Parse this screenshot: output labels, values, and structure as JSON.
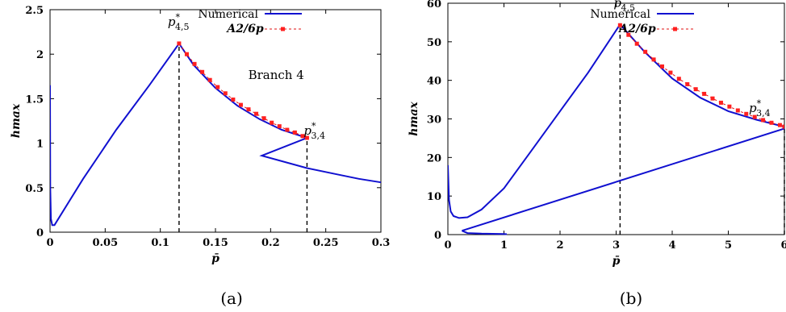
{
  "chart_data": [
    {
      "type": "line",
      "panel": "(a)",
      "xlabel": "p̄",
      "ylabel": "hmax",
      "xlim": [
        0,
        0.3
      ],
      "ylim": [
        0,
        2.5
      ],
      "xticks": [
        "0",
        "0.05",
        "0.1",
        "0.15",
        "0.2",
        "0.25",
        "0.3"
      ],
      "xtick_values": [
        0,
        0.05,
        0.1,
        0.15,
        0.2,
        0.25,
        0.3
      ],
      "yticks": [
        "0",
        "0.5",
        "1",
        "1.5",
        "2",
        "2.5"
      ],
      "ytick_values": [
        0,
        0.5,
        1,
        1.5,
        2,
        2.5
      ],
      "legend": [
        "Numerical",
        "A2/6p"
      ],
      "legend_position": "top-right",
      "annotations": [
        "p*4,5",
        "p*3,4",
        "Branch 4"
      ],
      "series": [
        {
          "name": "Numerical",
          "style": "solid-blue",
          "x": [
            0.0,
            0.0002,
            0.0008,
            0.002,
            0.004,
            0.006,
            0.03,
            0.06,
            0.09,
            0.117,
            0.13,
            0.15,
            0.17,
            0.19,
            0.21,
            0.233,
            0.192,
            0.233,
            0.26,
            0.28,
            0.3
          ],
          "y": [
            1.65,
            0.5,
            0.15,
            0.08,
            0.08,
            0.12,
            0.6,
            1.15,
            1.65,
            2.12,
            1.88,
            1.62,
            1.42,
            1.27,
            1.15,
            1.06,
            0.86,
            0.72,
            0.65,
            0.6,
            0.56
          ]
        },
        {
          "name": "A2/6p",
          "style": "red-dashed-squares",
          "x": [
            0.117,
            0.124,
            0.131,
            0.138,
            0.145,
            0.152,
            0.159,
            0.166,
            0.173,
            0.18,
            0.187,
            0.194,
            0.201,
            0.208,
            0.215,
            0.222,
            0.229,
            0.233
          ],
          "y": [
            2.12,
            2.0,
            1.89,
            1.8,
            1.71,
            1.63,
            1.56,
            1.49,
            1.43,
            1.38,
            1.33,
            1.28,
            1.23,
            1.19,
            1.15,
            1.12,
            1.08,
            1.06
          ]
        }
      ],
      "vlines": [
        0.117,
        0.233
      ]
    },
    {
      "type": "line",
      "panel": "(b)",
      "xlabel": "p̄",
      "ylabel": "hmax",
      "xlim": [
        0,
        6
      ],
      "ylim": [
        0,
        60
      ],
      "xticks": [
        "0",
        "1",
        "2",
        "3",
        "4",
        "5",
        "6"
      ],
      "xtick_values": [
        0,
        1,
        2,
        3,
        4,
        5,
        6
      ],
      "yticks": [
        "0",
        "10",
        "20",
        "30",
        "40",
        "50",
        "60"
      ],
      "ytick_values": [
        0,
        10,
        20,
        30,
        40,
        50,
        60
      ],
      "legend": [
        "Numerical",
        "A2/6p"
      ],
      "legend_position": "top-right",
      "annotations": [
        "p*4,5",
        "p*3,4"
      ],
      "series": [
        {
          "name": "Numerical",
          "style": "solid-blue",
          "x": [
            0.0,
            0.02,
            0.05,
            0.1,
            0.2,
            0.35,
            0.6,
            1.0,
            1.5,
            2.0,
            2.5,
            3.07,
            3.5,
            4.0,
            4.5,
            5.0,
            5.5,
            6.0,
            0.25,
            0.35,
            0.6,
            1.0,
            1.05
          ],
          "y": [
            18.0,
            9.0,
            6.0,
            4.8,
            4.3,
            4.5,
            6.5,
            12.0,
            22.0,
            32.0,
            42.0,
            54.5,
            47.5,
            40.5,
            35.5,
            32.0,
            29.8,
            28.0,
            1.0,
            0.4,
            0.25,
            0.15,
            0.1
          ]
        },
        {
          "name": "Numerical-lower-branch",
          "style": "solid-blue",
          "x": [
            0.25,
            6.0
          ],
          "y": [
            1.0,
            27.5
          ]
        },
        {
          "name": "A2/6p",
          "style": "red-dashed-squares",
          "x": [
            3.07,
            3.22,
            3.37,
            3.52,
            3.67,
            3.82,
            3.97,
            4.12,
            4.27,
            4.42,
            4.57,
            4.72,
            4.87,
            5.02,
            5.17,
            5.32,
            5.47,
            5.62,
            5.77,
            5.92,
            6.0
          ],
          "y": [
            54.3,
            51.8,
            49.5,
            47.4,
            45.4,
            43.6,
            42.0,
            40.4,
            39.0,
            37.7,
            36.5,
            35.3,
            34.2,
            33.2,
            32.2,
            31.3,
            30.5,
            29.7,
            29.0,
            28.4,
            28.0
          ]
        }
      ],
      "vlines": [
        3.07,
        6.0
      ]
    }
  ],
  "captions": [
    "(a)",
    "(b)"
  ],
  "colors": {
    "numerical": "#1010d0",
    "approx": "#e01010",
    "marker_fill": "#ff2020"
  }
}
